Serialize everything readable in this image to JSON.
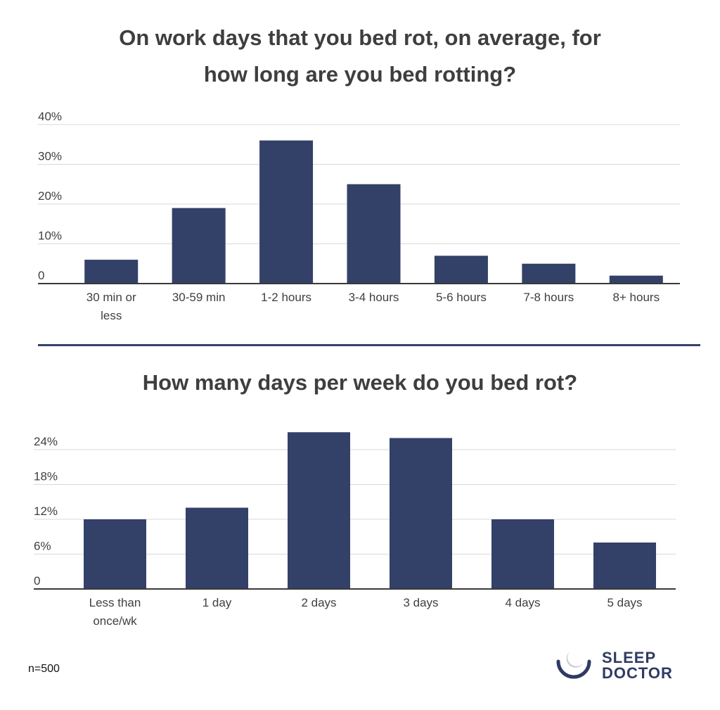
{
  "chart_data": [
    {
      "type": "bar",
      "title": "On work days that you bed rot, on average, for how long are you bed rotting?",
      "categories": [
        "30 min or less",
        "30-59 min",
        "1-2 hours",
        "3-4 hours",
        "5-6 hours",
        "7-8 hours",
        "8+ hours"
      ],
      "values": [
        6,
        19,
        36,
        25,
        7,
        5,
        2
      ],
      "value_unit": "%",
      "yticks": [
        "0",
        "10%",
        "20%",
        "30%",
        "40%"
      ],
      "ytick_values": [
        0,
        10,
        20,
        30,
        40
      ],
      "ylim": [
        0,
        40
      ],
      "grid": true,
      "legend": "none",
      "colors": {
        "bar": "#334168"
      }
    },
    {
      "type": "bar",
      "title": "How many days per week do you bed rot?",
      "categories": [
        "Less than once/wk",
        "1 day",
        "2 days",
        "3 days",
        "4 days",
        "5 days"
      ],
      "values": [
        12,
        14,
        27,
        26,
        12,
        8
      ],
      "value_unit": "%",
      "yticks": [
        "0",
        "6%",
        "12%",
        "18%",
        "24%"
      ],
      "ytick_values": [
        0,
        6,
        12,
        18,
        24
      ],
      "ylim": [
        0,
        24
      ],
      "grid": true,
      "legend": "none",
      "colors": {
        "bar": "#334168"
      }
    }
  ],
  "footer": {
    "sample_size": "n=500",
    "brand_line1": "SLEEP",
    "brand_line2": "DOCTOR",
    "brand_icon": "moon-icon",
    "brand_color": "#2f3b62"
  }
}
